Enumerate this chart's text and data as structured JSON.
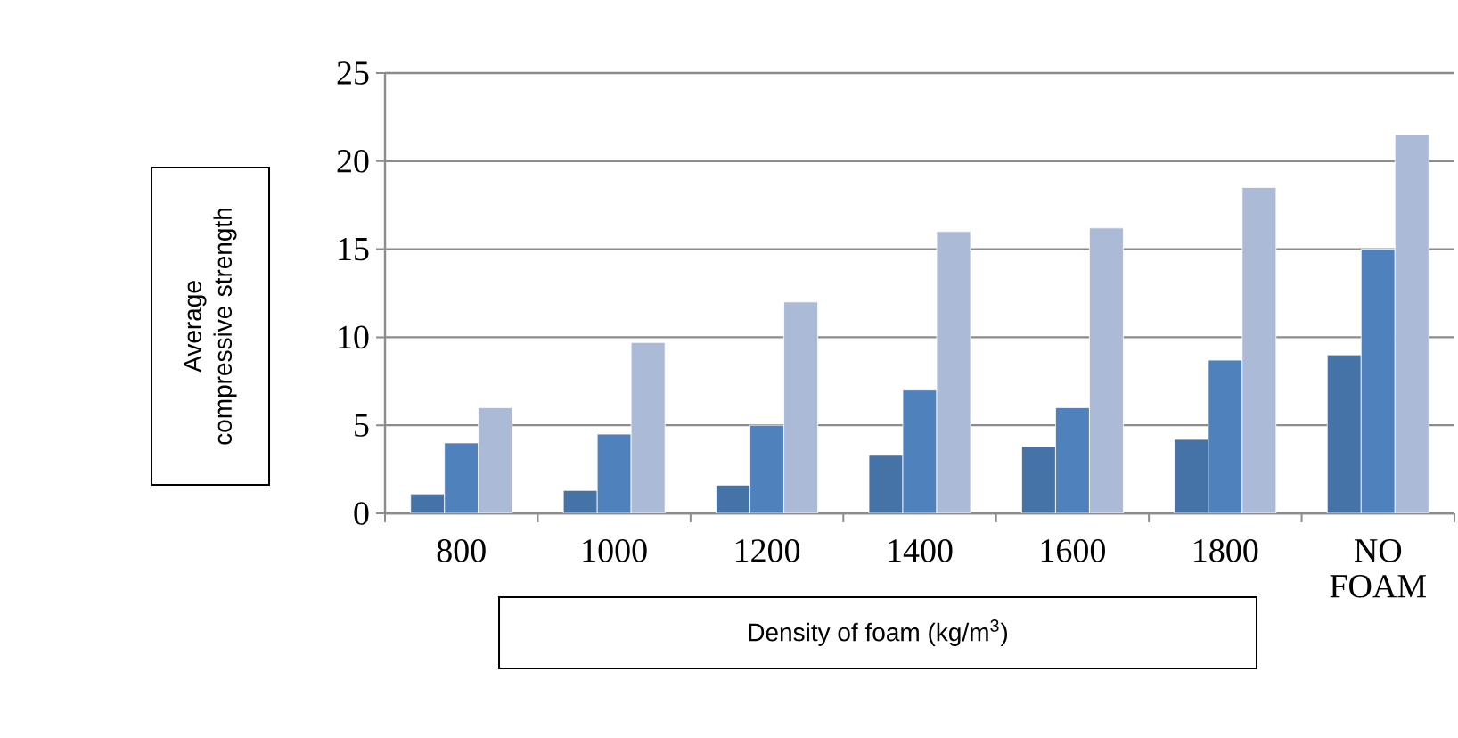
{
  "chart_data": {
    "type": "bar",
    "xlabel": "Density of foam (kg/m$^{3}$)",
    "ylabel": "Average compressive strength",
    "categories": [
      "800",
      "1000",
      "1200",
      "1400",
      "1600",
      "1800",
      "NO FOAM"
    ],
    "series": [
      {
        "color": "#4572a7",
        "values": [
          1.1,
          1.3,
          1.6,
          3.3,
          3.8,
          4.2,
          9.0
        ]
      },
      {
        "color": "#4f81bd",
        "values": [
          4.0,
          4.5,
          5.0,
          7.0,
          6.0,
          8.7,
          15.0
        ]
      },
      {
        "color": "#aabad7",
        "values": [
          6.0,
          9.7,
          12.0,
          16.0,
          16.2,
          18.5,
          21.5
        ]
      }
    ],
    "ylim": [
      0,
      25
    ],
    "yticks": [
      0,
      5,
      10,
      15,
      20,
      25
    ],
    "grid": "y"
  }
}
